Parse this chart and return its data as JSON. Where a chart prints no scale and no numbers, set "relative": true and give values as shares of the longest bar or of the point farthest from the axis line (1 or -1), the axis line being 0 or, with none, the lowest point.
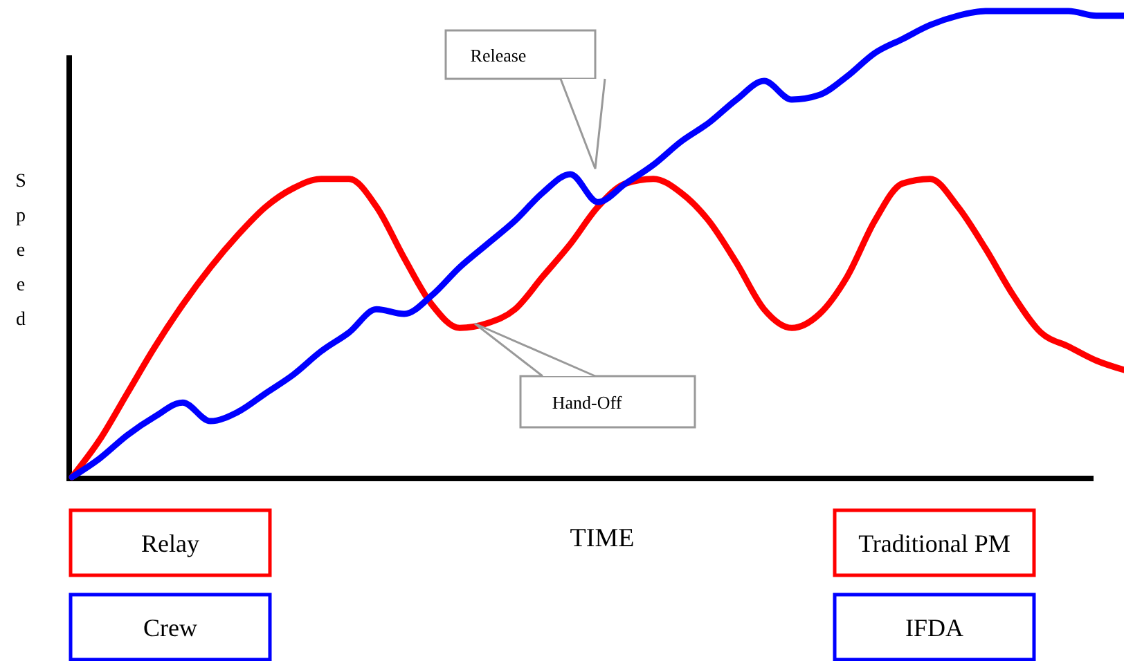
{
  "chart_data": {
    "type": "line",
    "relative": true,
    "xlabel": "TIME",
    "ylabel": "Speed",
    "legend": "bottom left",
    "marker": "none",
    "line_style": "solid",
    "categories": [
      null,
      null,
      null,
      null,
      null,
      null,
      null,
      null,
      null,
      null,
      null,
      null,
      null,
      null,
      null,
      null,
      null,
      null,
      null,
      null,
      null,
      null,
      null,
      null,
      null,
      null,
      null,
      null,
      null,
      null,
      null,
      null,
      null,
      null,
      null,
      null,
      null,
      null,
      null
    ],
    "series": [
      {
        "name": "Relay",
        "color": "#ff0000",
        "values": [
          0,
          0.08,
          0.18,
          0.28,
          0.37,
          0.45,
          0.52,
          0.58,
          0.62,
          0.64,
          0.64,
          0.58,
          0.47,
          0.37,
          0.32,
          0.33,
          0.36,
          0.43,
          0.5,
          0.58,
          0.63,
          0.64,
          0.61,
          0.55,
          0.46,
          0.36,
          0.32,
          0.35,
          0.43,
          0.55,
          0.63,
          0.64,
          0.58,
          0.49,
          0.39,
          0.31,
          0.28,
          0.25,
          0.23
        ]
      },
      {
        "name": "Crew",
        "color": "#0000ff",
        "values": [
          0,
          0.04,
          0.09,
          0.13,
          0.16,
          0.12,
          0.14,
          0.18,
          0.22,
          0.27,
          0.31,
          0.36,
          0.35,
          0.39,
          0.45,
          0.5,
          0.55,
          0.61,
          0.65,
          0.59,
          0.63,
          0.67,
          0.72,
          0.76,
          0.81,
          0.85,
          0.81,
          0.82,
          0.86,
          0.91,
          0.94,
          0.97,
          0.99,
          1,
          1,
          1,
          1,
          0.99,
          0.99
        ]
      }
    ],
    "annotations": [
      "Release",
      "Hand-Off",
      "Traditional PM",
      "IFDA"
    ]
  }
}
